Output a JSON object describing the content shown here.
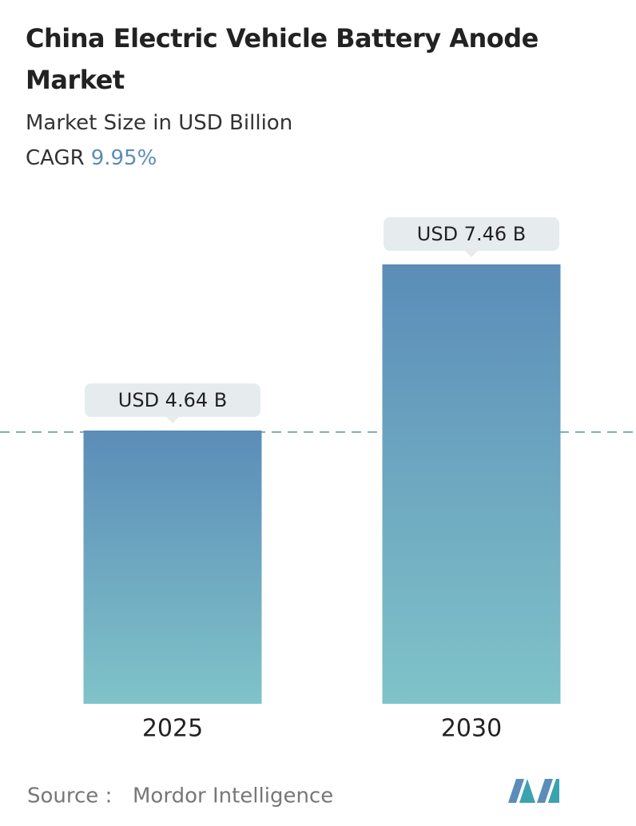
{
  "chart_data": {
    "type": "bar",
    "title": "China Electric Vehicle Battery Anode Market",
    "subtitle": "Market Size in USD Billion",
    "cagr_label": "CAGR",
    "cagr_value": "9.95%",
    "categories": [
      "2025",
      "2030"
    ],
    "values": [
      4.64,
      7.46
    ],
    "value_labels": [
      "USD 4.64 B",
      "USD 7.46 B"
    ],
    "color": [
      "#5b8db8",
      "#80c3c9"
    ],
    "source_label": "Source :",
    "source": "Mordor Intelligence"
  }
}
